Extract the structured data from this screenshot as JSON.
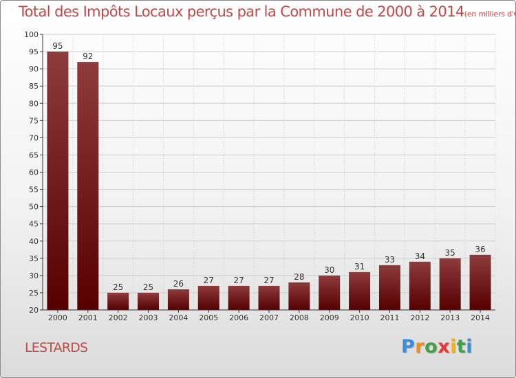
{
  "header": {
    "title": "Total des Impôts Locaux perçus par la Commune de 2000 à 2014",
    "unit": "(en milliers d'€)"
  },
  "footer": {
    "commune": "LESTARDS",
    "brand": {
      "letters": [
        "P",
        "r",
        "o",
        "x",
        "i",
        "t",
        "i"
      ],
      "colors": [
        "#3a8fd6",
        "#f28c1e",
        "#43a047",
        "#e53935",
        "#f2b21e",
        "#43a047",
        "#3a8fd6"
      ]
    }
  },
  "colors": {
    "title": "#c44848",
    "bar_top": "#8e3b3b",
    "bar_bottom": "#560000",
    "axis": "#333333",
    "grid": "#cccccc"
  },
  "chart_data": {
    "type": "bar",
    "categories": [
      "2000",
      "2001",
      "2002",
      "2003",
      "2004",
      "2005",
      "2006",
      "2007",
      "2008",
      "2009",
      "2010",
      "2011",
      "2012",
      "2013",
      "2014"
    ],
    "values": [
      95,
      92,
      25,
      25,
      26,
      27,
      27,
      27,
      28,
      30,
      31,
      33,
      34,
      35,
      36
    ],
    "ylim": [
      20,
      100
    ],
    "yticks": [
      20,
      25,
      30,
      35,
      40,
      45,
      50,
      55,
      60,
      65,
      70,
      75,
      80,
      85,
      90,
      95,
      100
    ],
    "grid": true,
    "data_labels": true
  }
}
